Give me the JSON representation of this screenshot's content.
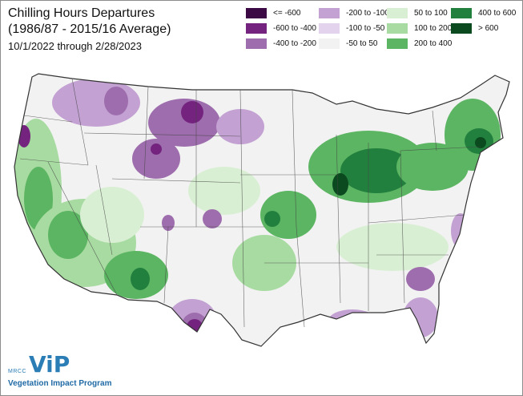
{
  "title": {
    "line1": "Chilling Hours Departures",
    "line2": "(1986/87 - 2015/16 Average)"
  },
  "subtitle": "10/1/2022 through 2/28/2023",
  "legend": [
    {
      "label": "<= -600",
      "color": "#3b0a45"
    },
    {
      "label": "-600 to -400",
      "color": "#74247f"
    },
    {
      "label": "-400 to -200",
      "color": "#9e6dad"
    },
    {
      "label": "-200 to -100",
      "color": "#c3a2d3"
    },
    {
      "label": "-100 to -50",
      "color": "#e3d3ec"
    },
    {
      "label": "-50 to 50",
      "color": "#f2f2f2"
    },
    {
      "label": "50 to 100",
      "color": "#d9efd3"
    },
    {
      "label": "100 to 200",
      "color": "#a8dba1"
    },
    {
      "label": "200 to 400",
      "color": "#5cb562"
    },
    {
      "label": "400 to 600",
      "color": "#22803e"
    },
    {
      "label": "> 600",
      "color": "#0b4a1f"
    }
  ],
  "logo": {
    "org": "MRCC",
    "mark": "ViP",
    "program": "Vegetation Impact Program"
  },
  "map": {
    "region": "Contiguous United States",
    "base_color": "#f2f2f2",
    "boundary_color": "#333333"
  }
}
